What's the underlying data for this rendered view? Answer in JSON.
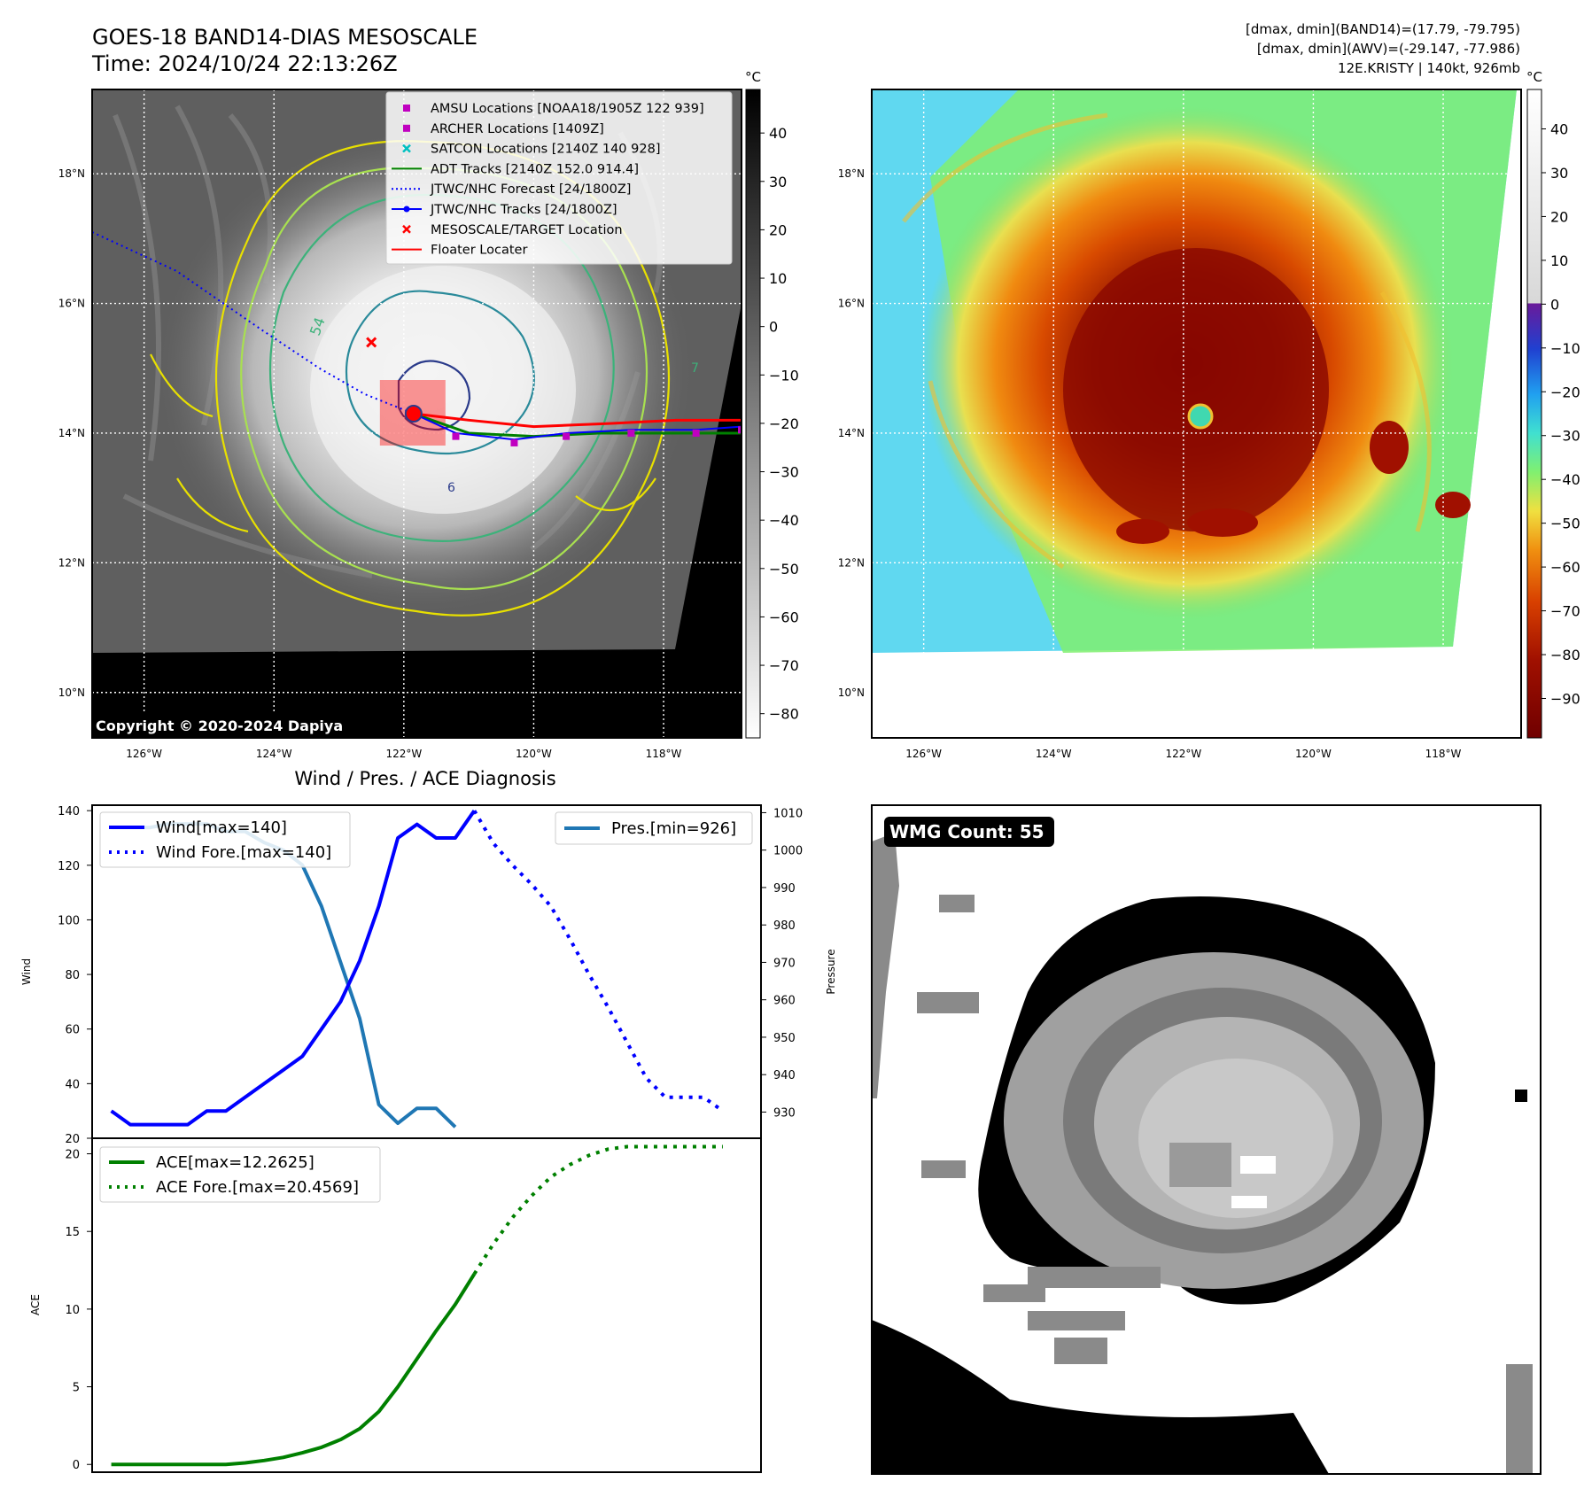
{
  "header": {
    "title_line1": "GOES-18 BAND14-DIAS MESOSCALE",
    "title_line2": "Time: 2024/10/24 22:13:26Z",
    "info_line1": "[dmax, dmin](BAND14)=(17.79, -79.795)",
    "info_line2": "[dmax, dmin](AWV)=(-29.147, -77.986)",
    "info_line3": "12E.KRISTY | 140kt, 926mb"
  },
  "maps": {
    "lat_labels": [
      "18°N",
      "16°N",
      "14°N",
      "12°N",
      "10°N"
    ],
    "lat_values": [
      18,
      16,
      14,
      12,
      10
    ],
    "lon_labels": [
      "126°W",
      "124°W",
      "122°W",
      "120°W",
      "118°W"
    ],
    "lon_values": [
      -126,
      -124,
      -122,
      -120,
      -118
    ],
    "lon_range": [
      -126.8,
      -116.8
    ],
    "lat_range": [
      9.3,
      19.3
    ],
    "copyright": "Copyright © 2020-2024 Dapiya",
    "left_colorbar": {
      "unit": "°C",
      "ticks": [
        "40",
        "30",
        "20",
        "10",
        "0",
        "−10",
        "−20",
        "−30",
        "−40",
        "−50",
        "−60",
        "−70",
        "−80"
      ],
      "tick_values": [
        40,
        30,
        20,
        10,
        0,
        -10,
        -20,
        -30,
        -40,
        -50,
        -60,
        -70,
        -80
      ],
      "range": [
        -85,
        49
      ]
    },
    "right_colorbar": {
      "unit": "°C",
      "ticks": [
        "40",
        "30",
        "20",
        "10",
        "0",
        "−10",
        "−20",
        "−30",
        "−40",
        "−50",
        "−60",
        "−70",
        "−80",
        "−90"
      ],
      "tick_values": [
        40,
        30,
        20,
        10,
        0,
        -10,
        -20,
        -30,
        -40,
        -50,
        -60,
        -70,
        -80,
        -90
      ],
      "range": [
        -99,
        49
      ]
    },
    "legend": [
      {
        "label": "AMSU Locations [NOAA18/1905Z 122 939]",
        "color": "#c000c0",
        "marker": "square"
      },
      {
        "label": "ARCHER Locations [1409Z]",
        "color": "#c000c0",
        "marker": "square"
      },
      {
        "label": "SATCON Locations [2140Z 140 928]",
        "color": "#00c0c0",
        "marker": "x"
      },
      {
        "label": "ADT Tracks [2140Z 152.0 914.4]",
        "color": "#008000",
        "marker": "line"
      },
      {
        "label": "JTWC/NHC Forecast [24/1800Z]",
        "color": "#0000ff",
        "marker": "dotted"
      },
      {
        "label": "JTWC/NHC Tracks [24/1800Z]",
        "color": "#0000ff",
        "marker": "line-dot"
      },
      {
        "label": "MESOSCALE/TARGET Location",
        "color": "#ff0000",
        "marker": "x"
      },
      {
        "label": "Floater Locater",
        "color": "#ff0000",
        "marker": "line"
      }
    ],
    "contour_labels": [
      "54",
      "6",
      "7"
    ],
    "storm_center": {
      "lon": -121.85,
      "lat": 14.3
    },
    "target_location": {
      "lon": -122.5,
      "lat": 15.4
    },
    "forecast_track": [
      [
        -126.8,
        17.1
      ],
      [
        -125.5,
        16.5
      ],
      [
        -124.2,
        15.6
      ],
      [
        -123.3,
        15.0
      ],
      [
        -122.6,
        14.6
      ],
      [
        -121.85,
        14.3
      ]
    ],
    "past_track": [
      [
        -121.85,
        14.3
      ],
      [
        -121.2,
        14.0
      ],
      [
        -120.3,
        13.9
      ],
      [
        -119.5,
        14.0
      ],
      [
        -118.5,
        14.05
      ],
      [
        -117.5,
        14.05
      ],
      [
        -116.8,
        14.1
      ]
    ],
    "floater_track": [
      [
        -121.85,
        14.3
      ],
      [
        -121.0,
        14.2
      ],
      [
        -120.0,
        14.1
      ],
      [
        -118.8,
        14.15
      ],
      [
        -117.8,
        14.2
      ],
      [
        -116.8,
        14.2
      ]
    ],
    "adt_track": [
      [
        -121.85,
        14.3
      ],
      [
        -121.0,
        14.0
      ],
      [
        -120.0,
        13.95
      ],
      [
        -119.0,
        14.0
      ],
      [
        -118.0,
        14.0
      ],
      [
        -116.8,
        14.0
      ]
    ]
  },
  "diagnosis": {
    "title": "Wind / Pres. / ACE Diagnosis",
    "wind_axis_label": "Wind",
    "pressure_axis_label": "Pressure",
    "ace_axis_label": "ACE",
    "legend_wind": "Wind[max=140]",
    "legend_wind_fore": "Wind Fore.[max=140]",
    "legend_pres": "Pres.[min=926]",
    "legend_ace": "ACE[max=12.2625]",
    "legend_ace_fore": "ACE Fore.[max=20.4569]",
    "wmg_label": "WMG Count: 55",
    "wind_ticks": [
      "140",
      "120",
      "100",
      "80",
      "60",
      "40",
      "20"
    ],
    "pres_ticks": [
      "1010",
      "1000",
      "990",
      "980",
      "970",
      "960",
      "950",
      "940",
      "930"
    ],
    "ace_ticks": [
      "20",
      "15",
      "10",
      "5",
      "0"
    ]
  },
  "chart_data": [
    {
      "type": "line",
      "title": "Wind / Pres. / ACE Diagnosis",
      "ylabel": "Wind",
      "ylim": [
        20,
        142
      ],
      "xlim": [
        -1,
        34
      ],
      "series": [
        {
          "name": "Wind[max=140]",
          "color": "#0000ff",
          "style": "solid",
          "x": [
            0,
            1,
            2,
            3,
            4,
            5,
            6,
            7,
            8,
            9,
            10,
            11,
            12,
            13,
            14,
            15,
            16,
            17,
            18,
            19,
            20,
            21
          ],
          "values": [
            30,
            25,
            25,
            25,
            25,
            30,
            30,
            35,
            40,
            45,
            50,
            60,
            70,
            85,
            105,
            130,
            135,
            130,
            130,
            140,
            null,
            null
          ]
        },
        {
          "name": "Wind Fore.[max=140]",
          "color": "#0000ff",
          "style": "dotted",
          "x": [
            19,
            20,
            21,
            22,
            23,
            24,
            25,
            26,
            27,
            28,
            29,
            30,
            31,
            32
          ],
          "values": [
            140,
            128,
            120,
            113,
            105,
            93,
            80,
            68,
            55,
            42,
            35,
            35,
            35,
            30
          ]
        }
      ]
    },
    {
      "type": "line",
      "ylabel": "Pressure",
      "ylim": [
        923,
        1012
      ],
      "series": [
        {
          "name": "Pres.[min=926]",
          "color": "#1f77b4",
          "style": "solid",
          "x": [
            0,
            1,
            2,
            3,
            4,
            5,
            6,
            7,
            8,
            9,
            10,
            11,
            12,
            13,
            14,
            15,
            16,
            17,
            18,
            19
          ],
          "values": [
            1006,
            1006,
            1006,
            1007,
            1007,
            1007,
            1005,
            1005,
            1002,
            1000,
            996,
            985,
            970,
            955,
            932,
            927,
            931,
            931,
            926,
            null
          ]
        }
      ]
    },
    {
      "type": "line",
      "ylabel": "ACE",
      "ylim": [
        -0.5,
        21
      ],
      "xlim": [
        -1,
        34
      ],
      "series": [
        {
          "name": "ACE[max=12.2625]",
          "color": "#008000",
          "style": "solid",
          "x": [
            0,
            2,
            4,
            6,
            7,
            8,
            9,
            10,
            11,
            12,
            13,
            14,
            15,
            16,
            17,
            18,
            19
          ],
          "values": [
            0,
            0,
            0,
            0,
            0.1,
            0.25,
            0.45,
            0.75,
            1.1,
            1.6,
            2.3,
            3.4,
            5.0,
            6.8,
            8.6,
            10.3,
            12.2625
          ]
        },
        {
          "name": "ACE Fore.[max=20.4569]",
          "color": "#008000",
          "style": "dotted",
          "x": [
            19,
            20,
            21,
            22,
            23,
            24,
            25,
            26,
            27,
            28,
            29,
            30,
            31,
            32
          ],
          "values": [
            12.2625,
            14.2,
            15.9,
            17.3,
            18.5,
            19.3,
            19.9,
            20.3,
            20.4569,
            20.4569,
            20.4569,
            20.4569,
            20.4569,
            20.4569
          ]
        }
      ]
    }
  ]
}
